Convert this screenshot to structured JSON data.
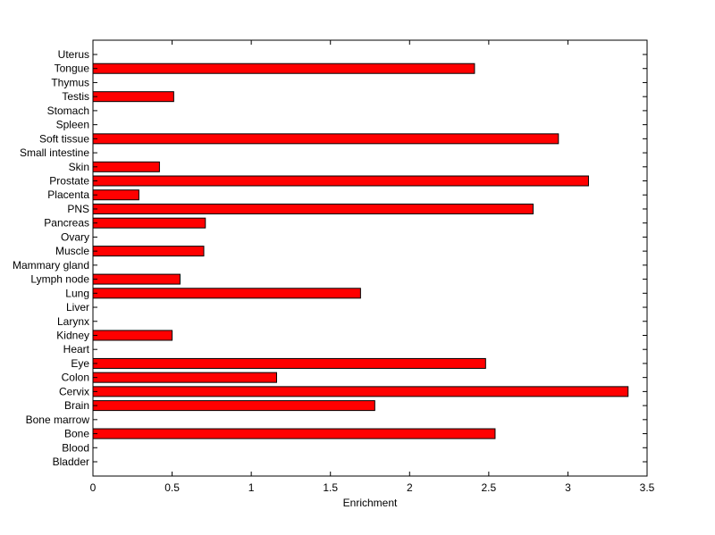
{
  "chart_data": {
    "type": "bar",
    "orientation": "horizontal",
    "xlabel": "Enrichment",
    "xlim": [
      0,
      3.5
    ],
    "xticks": [
      0,
      0.5,
      1,
      1.5,
      2,
      2.5,
      3,
      3.5
    ],
    "xtick_labels": [
      "0",
      "0.5",
      "1",
      "1.5",
      "2",
      "2.5",
      "3",
      "3.5"
    ],
    "grid": false,
    "bar_color": "#ff0000",
    "categories": [
      "Bladder",
      "Blood",
      "Bone",
      "Bone marrow",
      "Brain",
      "Cervix",
      "Colon",
      "Eye",
      "Heart",
      "Kidney",
      "Larynx",
      "Liver",
      "Lung",
      "Lymph node",
      "Mammary gland",
      "Muscle",
      "Ovary",
      "Pancreas",
      "PNS",
      "Placenta",
      "Prostate",
      "Skin",
      "Small intestine",
      "Soft tissue",
      "Spleen",
      "Stomach",
      "Testis",
      "Thymus",
      "Tongue",
      "Uterus"
    ],
    "values": [
      0,
      0,
      2.54,
      0,
      1.78,
      3.38,
      1.16,
      2.48,
      0,
      0.5,
      0,
      0,
      1.69,
      0.55,
      0,
      0.7,
      0,
      0.71,
      2.78,
      0.29,
      3.13,
      0.42,
      0,
      2.94,
      0,
      0,
      0.51,
      0,
      2.41,
      0
    ]
  }
}
